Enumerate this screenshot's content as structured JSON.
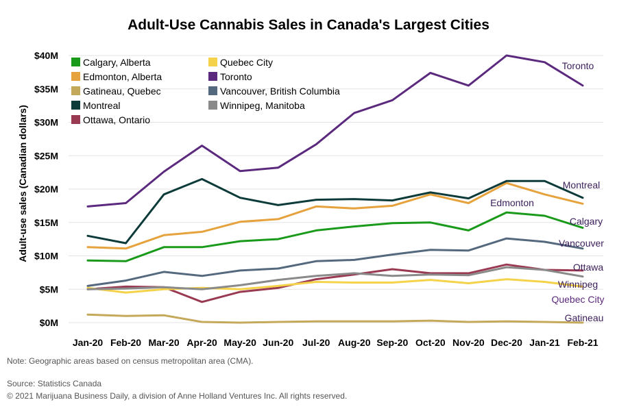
{
  "chart_data": {
    "type": "line",
    "title": "Adult-Use Cannabis Sales in Canada's Largest Cities",
    "ylabel": "Adult-use sales (Canadian dollars)",
    "xlabel": "",
    "ylim": [
      0,
      40
    ],
    "yticks": [
      0,
      5,
      10,
      15,
      20,
      25,
      30,
      35,
      40
    ],
    "ytick_labels": [
      "$0M",
      "$5M",
      "$10M",
      "$15M",
      "$20M",
      "$25M",
      "$30M",
      "$35M",
      "$40M"
    ],
    "categories": [
      "Jan-20",
      "Feb-20",
      "Mar-20",
      "Apr-20",
      "May-20",
      "Jun-20",
      "Jul-20",
      "Aug-20",
      "Sep-20",
      "Oct-20",
      "Nov-20",
      "Dec-20",
      "Jan-21",
      "Feb-21"
    ],
    "grid": true,
    "legend_position": "top-left",
    "series": [
      {
        "name": "Calgary, Alberta",
        "end_label": "Calgary",
        "color": "#1a9a1a",
        "values": [
          9.3,
          9.2,
          11.3,
          11.3,
          12.2,
          12.5,
          13.8,
          14.4,
          14.9,
          15.0,
          13.8,
          16.5,
          16.0,
          14.2
        ]
      },
      {
        "name": "Edmonton, Alberta",
        "end_label": "Edmonton",
        "color": "#e6a23c",
        "values": [
          11.3,
          11.1,
          13.1,
          13.6,
          15.1,
          15.5,
          17.4,
          17.1,
          17.5,
          19.2,
          17.9,
          20.9,
          19.2,
          17.8
        ]
      },
      {
        "name": "Gatineau, Quebec",
        "end_label": "Gatineau",
        "color": "#c5a95a",
        "values": [
          1.2,
          1.0,
          1.1,
          0.1,
          0.0,
          0.1,
          0.2,
          0.2,
          0.2,
          0.3,
          0.1,
          0.2,
          0.1,
          0.0
        ]
      },
      {
        "name": "Montreal",
        "end_label": "Montreal",
        "color": "#0d3b3a",
        "values": [
          13.0,
          11.9,
          19.2,
          21.5,
          18.7,
          17.6,
          18.4,
          18.5,
          18.3,
          19.5,
          18.6,
          21.2,
          21.2,
          18.7
        ]
      },
      {
        "name": "Ottawa, Ontario",
        "end_label": "Ottawa",
        "color": "#9a3a52",
        "values": [
          5.0,
          5.4,
          5.3,
          3.1,
          4.6,
          5.2,
          6.5,
          7.2,
          8.0,
          7.4,
          7.4,
          8.7,
          7.9,
          7.8
        ]
      },
      {
        "name": "Quebec City",
        "end_label": "Quebec City",
        "color": "#f4d24a",
        "values": [
          5.2,
          4.5,
          5.0,
          5.2,
          5.0,
          5.5,
          6.1,
          6.0,
          6.0,
          6.4,
          5.9,
          6.5,
          6.1,
          5.4
        ]
      },
      {
        "name": "Toronto",
        "end_label": "Toronto",
        "color": "#5b2a7e",
        "values": [
          17.4,
          17.9,
          22.6,
          26.5,
          22.7,
          23.2,
          26.7,
          31.4,
          33.3,
          37.4,
          35.5,
          40.0,
          39.0,
          35.5
        ]
      },
      {
        "name": "Vancouver, British Columbia",
        "end_label": "Vancouver",
        "color": "#55697e",
        "values": [
          5.5,
          6.3,
          7.6,
          7.0,
          7.8,
          8.1,
          9.2,
          9.4,
          10.2,
          10.9,
          10.8,
          12.6,
          12.1,
          11.1
        ]
      },
      {
        "name": "Winnipeg, Manitoba",
        "end_label": "Winnipeg",
        "color": "#8a8a8a",
        "values": [
          5.0,
          5.1,
          5.3,
          5.0,
          5.6,
          6.4,
          7.0,
          7.4,
          7.0,
          7.2,
          7.1,
          8.3,
          7.9,
          6.9
        ]
      }
    ]
  },
  "legend_order": [
    "Calgary, Alberta",
    "Edmonton, Alberta",
    "Gatineau, Quebec",
    "Montreal",
    "Ottawa, Ontario",
    "Quebec City",
    "Toronto",
    "Vancouver, British Columbia",
    "Winnipeg, Manitoba"
  ],
  "footer": {
    "note": "Note: Geographic areas based on census metropolitan area (CMA).",
    "source": "Source: Statistics Canada",
    "copyright": "© 2021 Marijuana Business Daily, a division of Anne Holland Ventures Inc. All rights reserved."
  }
}
